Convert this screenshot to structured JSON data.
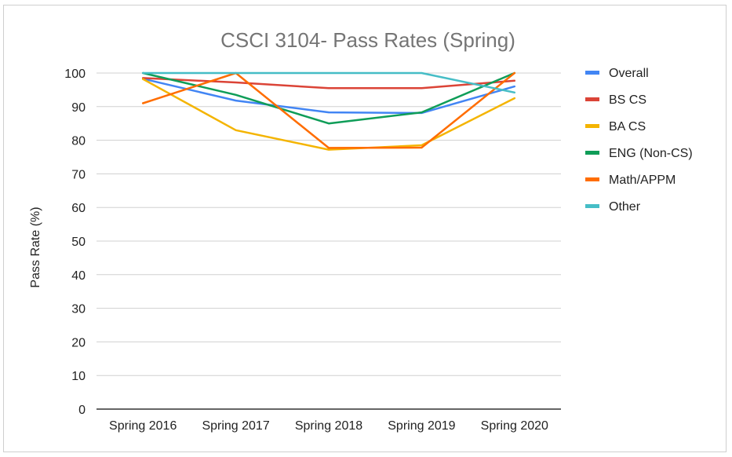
{
  "chart_data": {
    "type": "line",
    "title": "CSCI 3104- Pass Rates (Spring)",
    "xlabel": "",
    "ylabel": "Pass Rate (%)",
    "ylim": [
      0,
      100
    ],
    "yticks": [
      0,
      10,
      20,
      30,
      40,
      50,
      60,
      70,
      80,
      90,
      100
    ],
    "grid": true,
    "legend_position": "right",
    "categories": [
      "Spring 2016",
      "Spring 2017",
      "Spring 2018",
      "Spring 2019",
      "Spring 2020"
    ],
    "series": [
      {
        "name": "Overall",
        "color": "#4285f4",
        "values": [
          98.3,
          91.8,
          88.3,
          88.1,
          96.0
        ]
      },
      {
        "name": "BS CS",
        "color": "#db4437",
        "values": [
          98.5,
          97.2,
          95.5,
          95.5,
          97.7
        ]
      },
      {
        "name": "BA CS",
        "color": "#f4b400",
        "values": [
          98.2,
          83.0,
          77.2,
          78.5,
          92.5
        ]
      },
      {
        "name": "ENG (Non-CS)",
        "color": "#0f9d58",
        "values": [
          100,
          93.5,
          85.0,
          88.3,
          100
        ]
      },
      {
        "name": "Math/APPM",
        "color": "#ff6d00",
        "values": [
          91.0,
          100,
          77.7,
          77.8,
          100
        ]
      },
      {
        "name": "Other",
        "color": "#46bdc6",
        "values": [
          100,
          100,
          100,
          100,
          94.2
        ]
      }
    ]
  }
}
